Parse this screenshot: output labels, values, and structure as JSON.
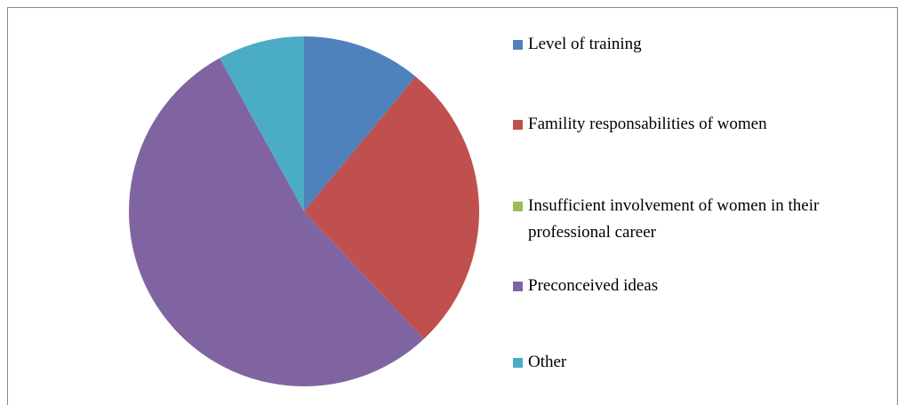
{
  "chart_data": {
    "type": "pie",
    "categories": [
      "Level of training",
      "Famility responsabilities of women",
      "Insufficient involvement of women in their professional career",
      "Preconceived ideas",
      "Other"
    ],
    "values": [
      11,
      27,
      0,
      54,
      8
    ],
    "colors": [
      "#4f81bd",
      "#c0504d",
      "#9bbb59",
      "#8064a2",
      "#4bacc6"
    ],
    "legend": "right"
  }
}
